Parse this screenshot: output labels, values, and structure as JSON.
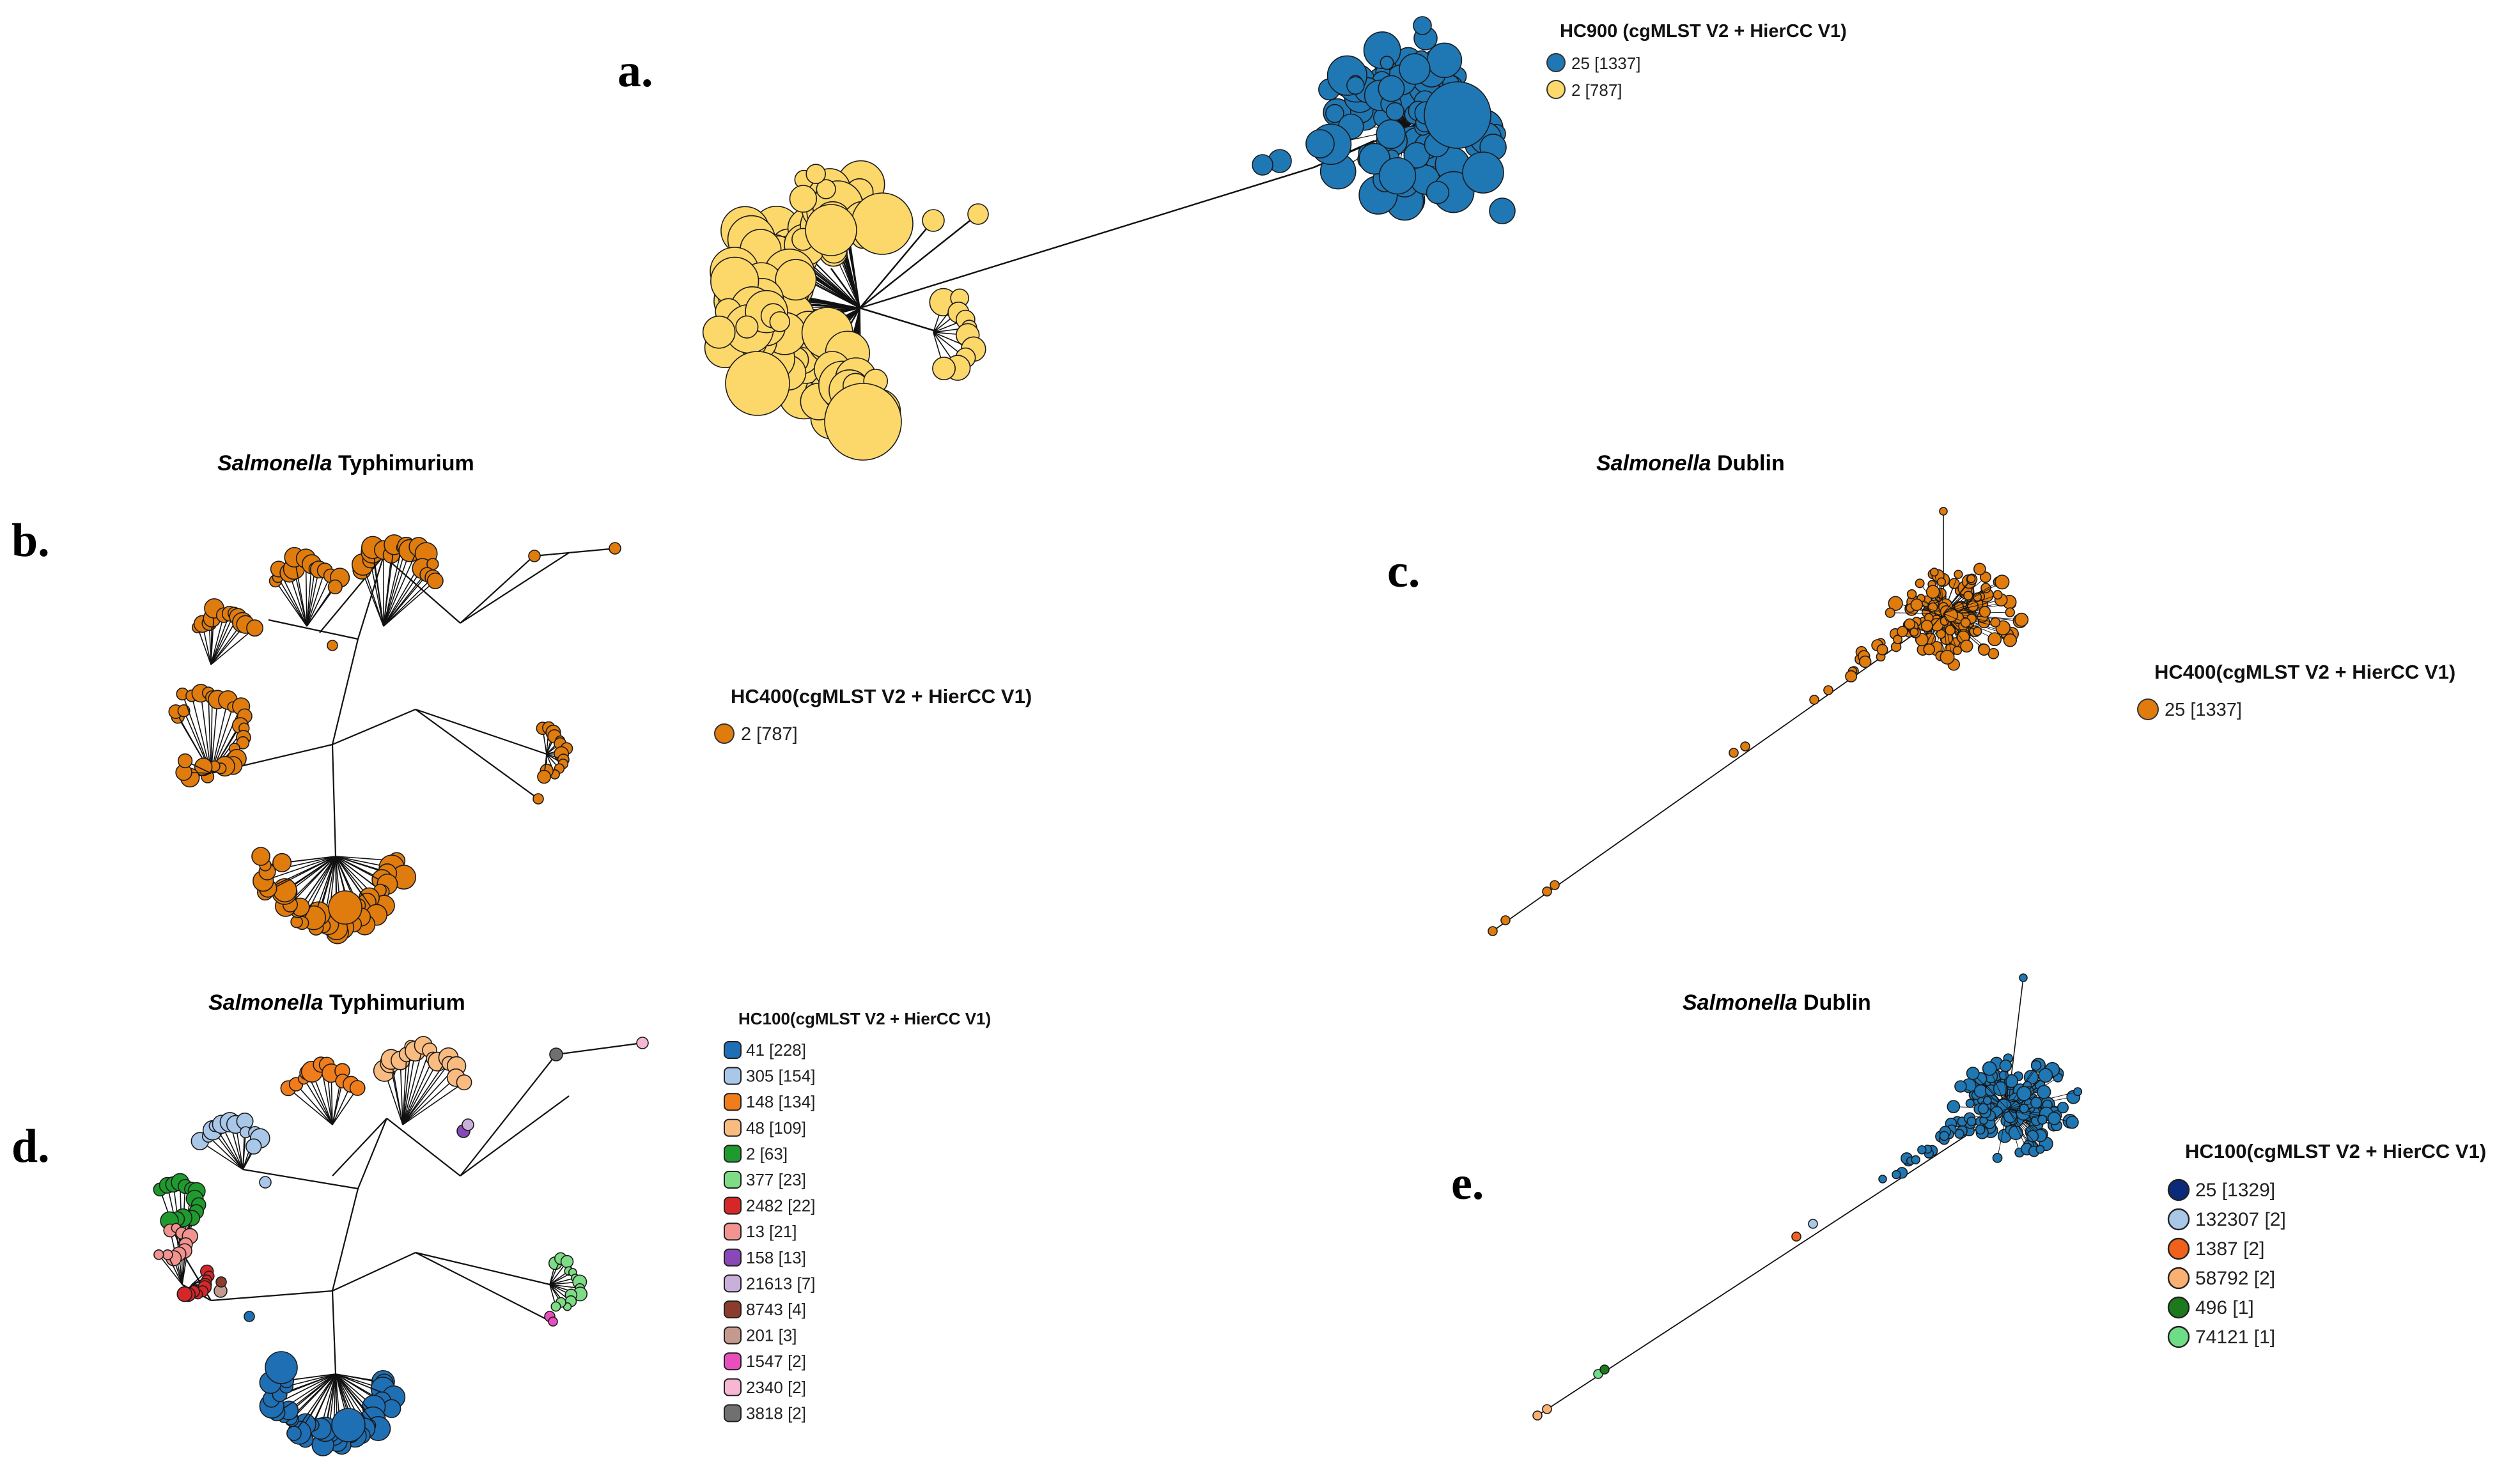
{
  "panels": {
    "a": {
      "label": "a.",
      "legend": {
        "title": "HC900  (cgMLST V2 + HierCC V1)",
        "items": [
          {
            "label": "25 [1337]",
            "color": "#1f77b4"
          },
          {
            "label": "2 [787]",
            "color": "#fdd86b"
          }
        ]
      }
    },
    "b": {
      "label": "b.",
      "title_italic": "Salmonella",
      "title_rest": " Typhimurium",
      "legend": {
        "title": "HC400(cgMLST V2 + HierCC V1)",
        "items": [
          {
            "label": "2 [787]",
            "color": "#e07b0e"
          }
        ]
      }
    },
    "c": {
      "label": "c.",
      "title_italic": "Salmonella",
      "title_rest": " Dublin",
      "legend": {
        "title": "HC400(cgMLST V2 + HierCC V1)",
        "items": [
          {
            "label": "25 [1337]",
            "color": "#e07b0e"
          }
        ]
      }
    },
    "d": {
      "label": "d.",
      "title_italic": "Salmonella",
      "title_rest": " Typhimurium",
      "legend": {
        "title": "HC100(cgMLST V2 + HierCC V1)",
        "items": [
          {
            "label": "41 [228]",
            "color": "#1f6fb5"
          },
          {
            "label": "305 [154]",
            "color": "#a9c7e8"
          },
          {
            "label": "148 [134]",
            "color": "#f07c1c"
          },
          {
            "label": "48 [109]",
            "color": "#f9bb80"
          },
          {
            "label": "2 [63]",
            "color": "#1f9a2e"
          },
          {
            "label": "377 [23]",
            "color": "#7fdc86"
          },
          {
            "label": "2482 [22]",
            "color": "#d62728"
          },
          {
            "label": "13 [21]",
            "color": "#f3938f"
          },
          {
            "label": "158 [13]",
            "color": "#8848b8"
          },
          {
            "label": "21613 [7]",
            "color": "#c9b0db"
          },
          {
            "label": "8743 [4]",
            "color": "#8c3c2c"
          },
          {
            "label": "201 [3]",
            "color": "#c49a8e"
          },
          {
            "label": "1547 [2]",
            "color": "#e84fbd"
          },
          {
            "label": "2340 [2]",
            "color": "#f6b6d4"
          },
          {
            "label": "3818 [2]",
            "color": "#707070"
          }
        ]
      }
    },
    "e": {
      "label": "e.",
      "title_italic": "Salmonella",
      "title_rest": " Dublin",
      "legend": {
        "title": "HC100(cgMLST V2 + HierCC V1)",
        "items": [
          {
            "label": "25 [1329]",
            "color": "#0c2a7a"
          },
          {
            "label": "132307 [2]",
            "color": "#a9c7e8"
          },
          {
            "label": "1387 [2]",
            "color": "#f0621c"
          },
          {
            "label": "58792 [2]",
            "color": "#f9b071"
          },
          {
            "label": "496 [1]",
            "color": "#1c7a1c"
          },
          {
            "label": "74121 [1]",
            "color": "#6fdc86"
          }
        ]
      }
    }
  }
}
